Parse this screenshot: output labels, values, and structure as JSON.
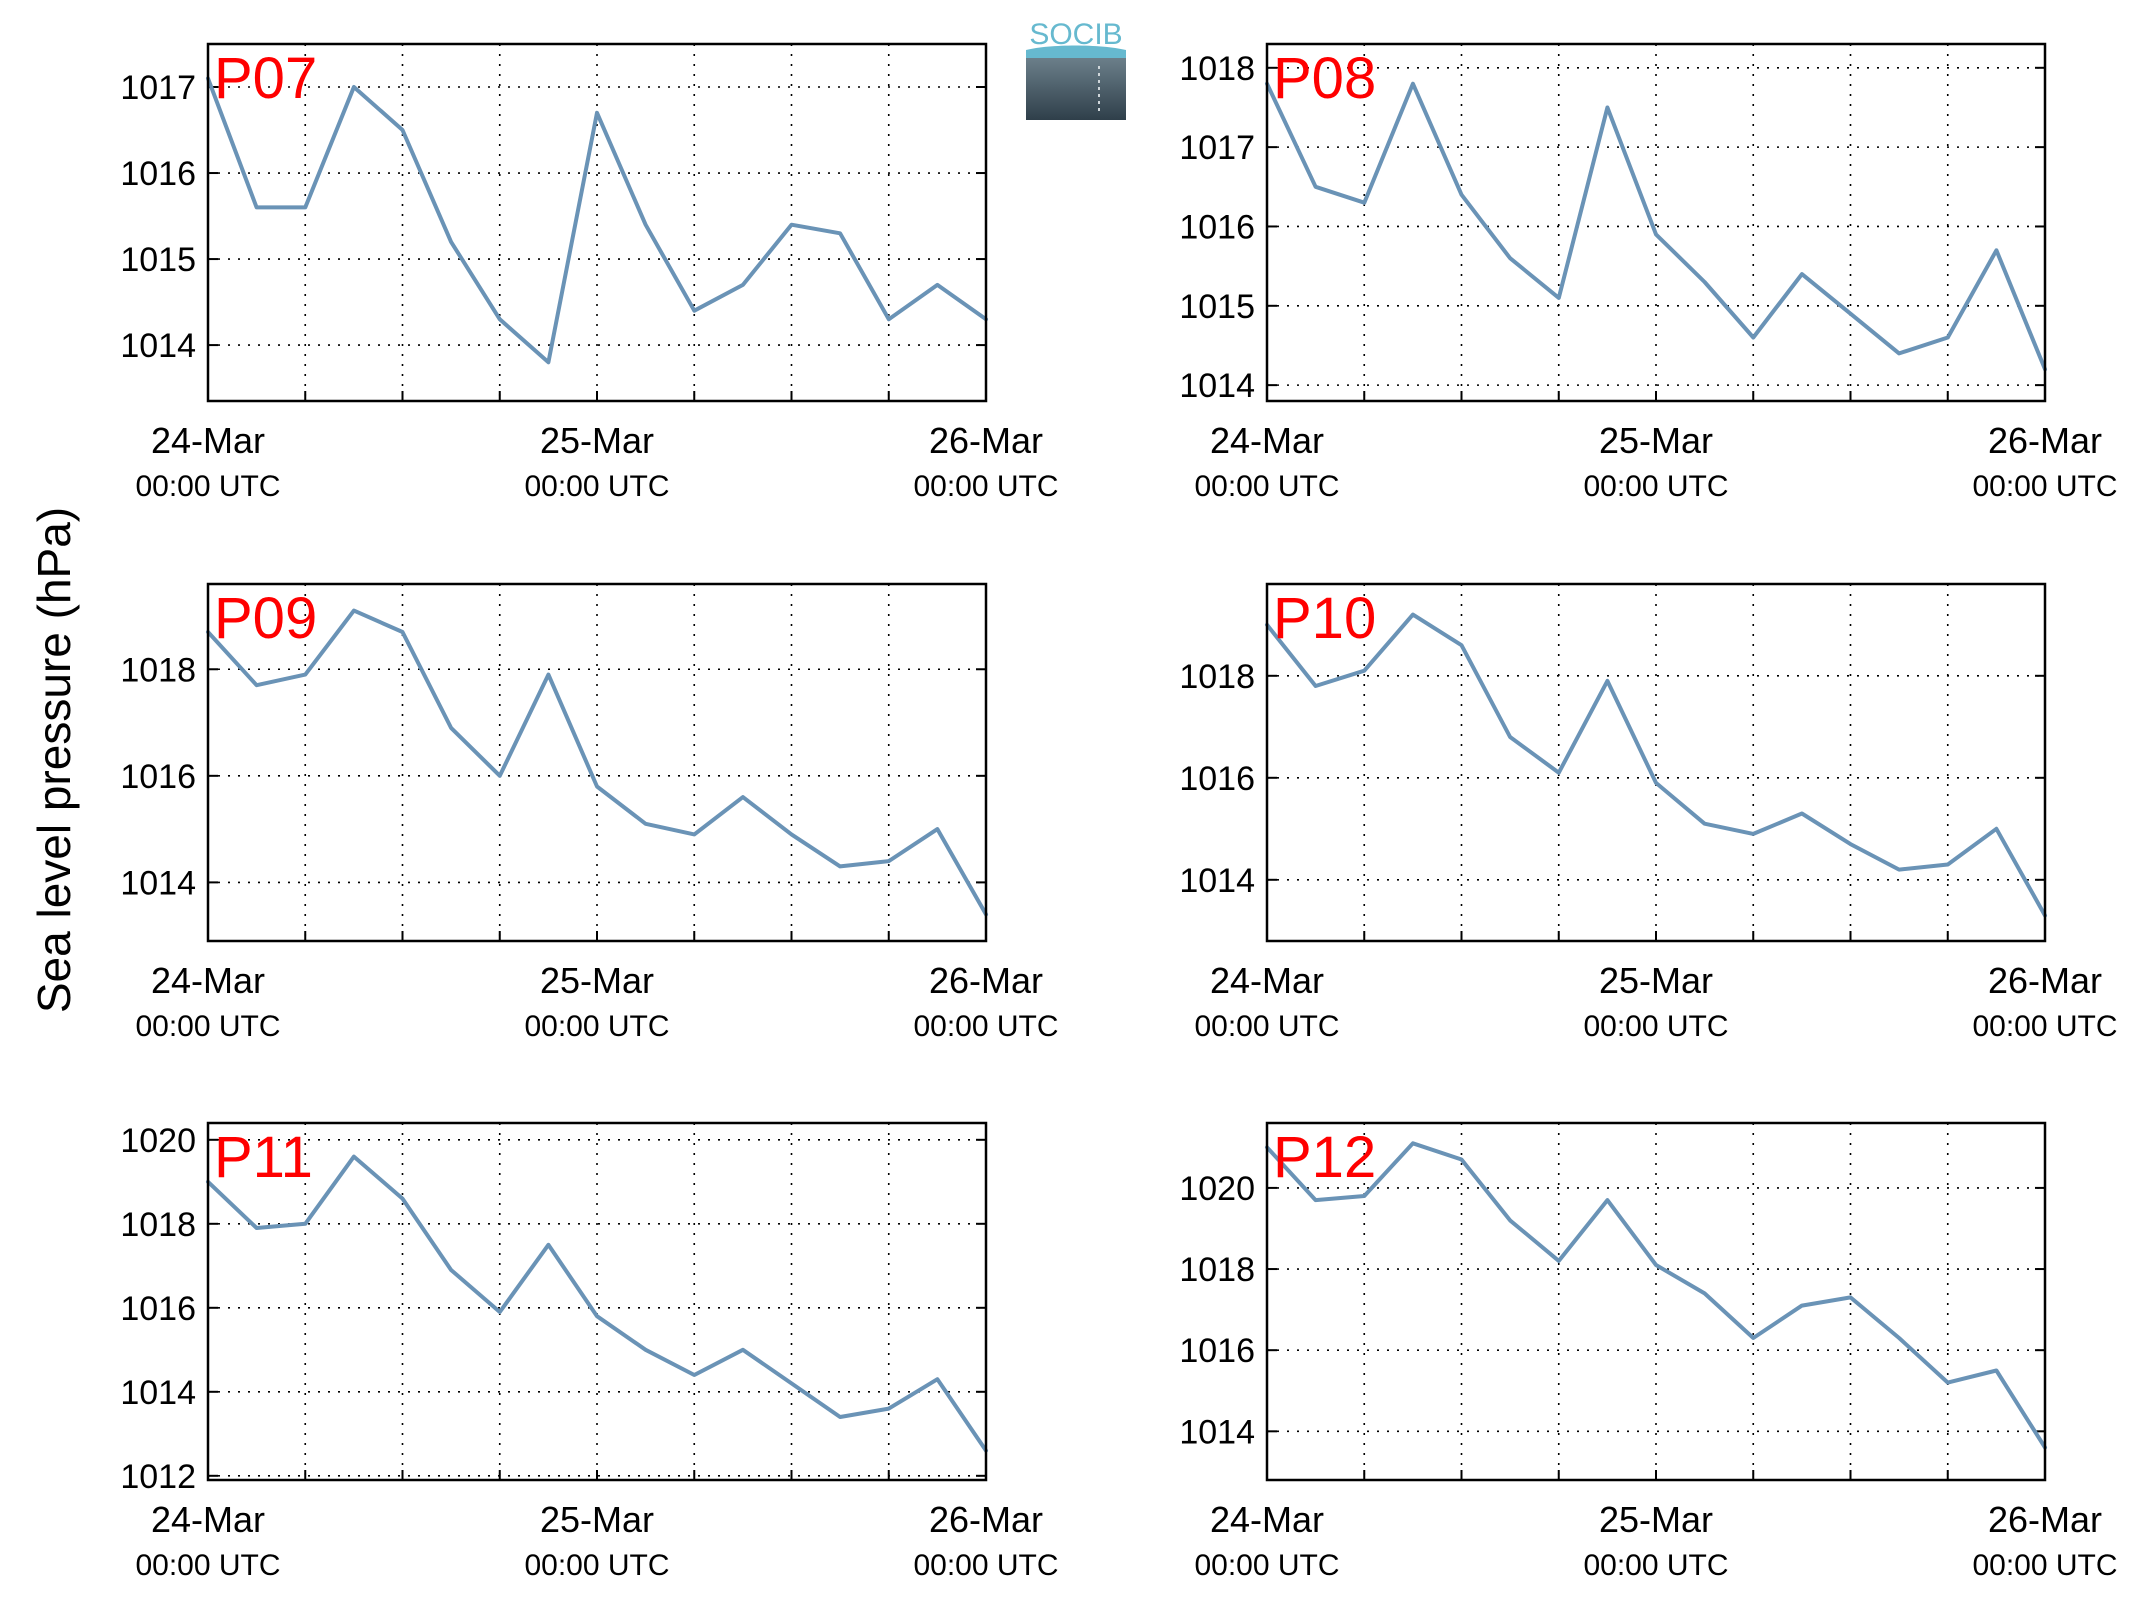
{
  "figure": {
    "ylabel": "Sea level pressure (hPa)",
    "logo_text": "SOCIB",
    "line_color": "#6a93b6",
    "station_label_color": "#ff0000",
    "grid": "dotted"
  },
  "chart_data": [
    {
      "type": "line",
      "station": "P07",
      "x": [
        "24-Mar 00:00",
        "24-Mar 03:00",
        "24-Mar 06:00",
        "24-Mar 09:00",
        "24-Mar 12:00",
        "24-Mar 15:00",
        "24-Mar 18:00",
        "24-Mar 21:00",
        "25-Mar 00:00",
        "25-Mar 03:00",
        "25-Mar 06:00",
        "25-Mar 09:00",
        "25-Mar 12:00",
        "25-Mar 15:00",
        "25-Mar 18:00",
        "25-Mar 21:00",
        "26-Mar 00:00"
      ],
      "y": [
        1017.1,
        1015.6,
        1015.6,
        1017.0,
        1016.5,
        1015.2,
        1014.3,
        1013.8,
        1016.7,
        1015.4,
        1014.4,
        1014.7,
        1015.4,
        1015.3,
        1014.3,
        1014.7,
        1014.3
      ],
      "xticks": [
        "24-Mar",
        "25-Mar",
        "26-Mar"
      ],
      "xticks_sub": [
        "00:00 UTC",
        "00:00 UTC",
        "00:00 UTC"
      ],
      "yticks": [
        1014,
        1015,
        1016,
        1017
      ],
      "ylim": [
        1013.35,
        1017.5
      ]
    },
    {
      "type": "line",
      "station": "P08",
      "x": [
        "24-Mar 00:00",
        "24-Mar 03:00",
        "24-Mar 06:00",
        "24-Mar 09:00",
        "24-Mar 12:00",
        "24-Mar 15:00",
        "24-Mar 18:00",
        "24-Mar 21:00",
        "25-Mar 00:00",
        "25-Mar 03:00",
        "25-Mar 06:00",
        "25-Mar 09:00",
        "25-Mar 12:00",
        "25-Mar 15:00",
        "25-Mar 18:00",
        "25-Mar 21:00",
        "26-Mar 00:00"
      ],
      "y": [
        1017.8,
        1016.5,
        1016.3,
        1017.8,
        1016.4,
        1015.6,
        1015.1,
        1017.5,
        1015.9,
        1015.3,
        1014.6,
        1015.4,
        1014.9,
        1014.4,
        1014.6,
        1015.7,
        1014.2
      ],
      "xticks": [
        "24-Mar",
        "25-Mar",
        "26-Mar"
      ],
      "xticks_sub": [
        "00:00 UTC",
        "00:00 UTC",
        "00:00 UTC"
      ],
      "yticks": [
        1014,
        1015,
        1016,
        1017,
        1018
      ],
      "ylim": [
        1013.8,
        1018.3
      ]
    },
    {
      "type": "line",
      "station": "P09",
      "x": [
        "24-Mar 00:00",
        "24-Mar 03:00",
        "24-Mar 06:00",
        "24-Mar 09:00",
        "24-Mar 12:00",
        "24-Mar 15:00",
        "24-Mar 18:00",
        "24-Mar 21:00",
        "25-Mar 00:00",
        "25-Mar 03:00",
        "25-Mar 06:00",
        "25-Mar 09:00",
        "25-Mar 12:00",
        "25-Mar 15:00",
        "25-Mar 18:00",
        "25-Mar 21:00",
        "26-Mar 00:00"
      ],
      "y": [
        1018.7,
        1017.7,
        1017.9,
        1019.1,
        1018.7,
        1016.9,
        1016.0,
        1017.9,
        1015.8,
        1015.1,
        1014.9,
        1015.6,
        1014.9,
        1014.3,
        1014.4,
        1015.0,
        1013.4
      ],
      "xticks": [
        "24-Mar",
        "25-Mar",
        "26-Mar"
      ],
      "xticks_sub": [
        "00:00 UTC",
        "00:00 UTC",
        "00:00 UTC"
      ],
      "yticks": [
        1014,
        1016,
        1018
      ],
      "ylim": [
        1012.9,
        1019.6
      ]
    },
    {
      "type": "line",
      "station": "P10",
      "x": [
        "24-Mar 00:00",
        "24-Mar 03:00",
        "24-Mar 06:00",
        "24-Mar 09:00",
        "24-Mar 12:00",
        "24-Mar 15:00",
        "24-Mar 18:00",
        "24-Mar 21:00",
        "25-Mar 00:00",
        "25-Mar 03:00",
        "25-Mar 06:00",
        "25-Mar 09:00",
        "25-Mar 12:00",
        "25-Mar 15:00",
        "25-Mar 18:00",
        "25-Mar 21:00",
        "26-Mar 00:00"
      ],
      "y": [
        1019.0,
        1017.8,
        1018.1,
        1019.2,
        1018.6,
        1016.8,
        1016.1,
        1017.9,
        1015.9,
        1015.1,
        1014.9,
        1015.3,
        1014.7,
        1014.2,
        1014.3,
        1015.0,
        1013.3
      ],
      "xticks": [
        "24-Mar",
        "25-Mar",
        "26-Mar"
      ],
      "xticks_sub": [
        "00:00 UTC",
        "00:00 UTC",
        "00:00 UTC"
      ],
      "yticks": [
        1014,
        1016,
        1018
      ],
      "ylim": [
        1012.8,
        1019.8
      ]
    },
    {
      "type": "line",
      "station": "P11",
      "x": [
        "24-Mar 00:00",
        "24-Mar 03:00",
        "24-Mar 06:00",
        "24-Mar 09:00",
        "24-Mar 12:00",
        "24-Mar 15:00",
        "24-Mar 18:00",
        "24-Mar 21:00",
        "25-Mar 00:00",
        "25-Mar 03:00",
        "25-Mar 06:00",
        "25-Mar 09:00",
        "25-Mar 12:00",
        "25-Mar 15:00",
        "25-Mar 18:00",
        "25-Mar 21:00",
        "26-Mar 00:00"
      ],
      "y": [
        1019.0,
        1017.9,
        1018.0,
        1019.6,
        1018.6,
        1016.9,
        1015.9,
        1017.5,
        1015.8,
        1015.0,
        1014.4,
        1015.0,
        1014.2,
        1013.4,
        1013.6,
        1014.3,
        1012.6
      ],
      "xticks": [
        "24-Mar",
        "25-Mar",
        "26-Mar"
      ],
      "xticks_sub": [
        "00:00 UTC",
        "00:00 UTC",
        "00:00 UTC"
      ],
      "yticks": [
        1012,
        1014,
        1016,
        1018,
        1020
      ],
      "ylim": [
        1011.9,
        1020.4
      ]
    },
    {
      "type": "line",
      "station": "P12",
      "x": [
        "24-Mar 00:00",
        "24-Mar 03:00",
        "24-Mar 06:00",
        "24-Mar 09:00",
        "24-Mar 12:00",
        "24-Mar 15:00",
        "24-Mar 18:00",
        "24-Mar 21:00",
        "25-Mar 00:00",
        "25-Mar 03:00",
        "25-Mar 06:00",
        "25-Mar 09:00",
        "25-Mar 12:00",
        "25-Mar 15:00",
        "25-Mar 18:00",
        "25-Mar 21:00",
        "26-Mar 00:00"
      ],
      "y": [
        1021.0,
        1019.7,
        1019.8,
        1021.1,
        1020.7,
        1019.2,
        1018.2,
        1019.7,
        1018.1,
        1017.4,
        1016.3,
        1017.1,
        1017.3,
        1016.3,
        1015.2,
        1015.5,
        1013.6
      ],
      "xticks": [
        "24-Mar",
        "25-Mar",
        "26-Mar"
      ],
      "xticks_sub": [
        "00:00 UTC",
        "00:00 UTC",
        "00:00 UTC"
      ],
      "yticks": [
        1014,
        1016,
        1018,
        1020
      ],
      "ylim": [
        1012.8,
        1021.6
      ]
    }
  ]
}
